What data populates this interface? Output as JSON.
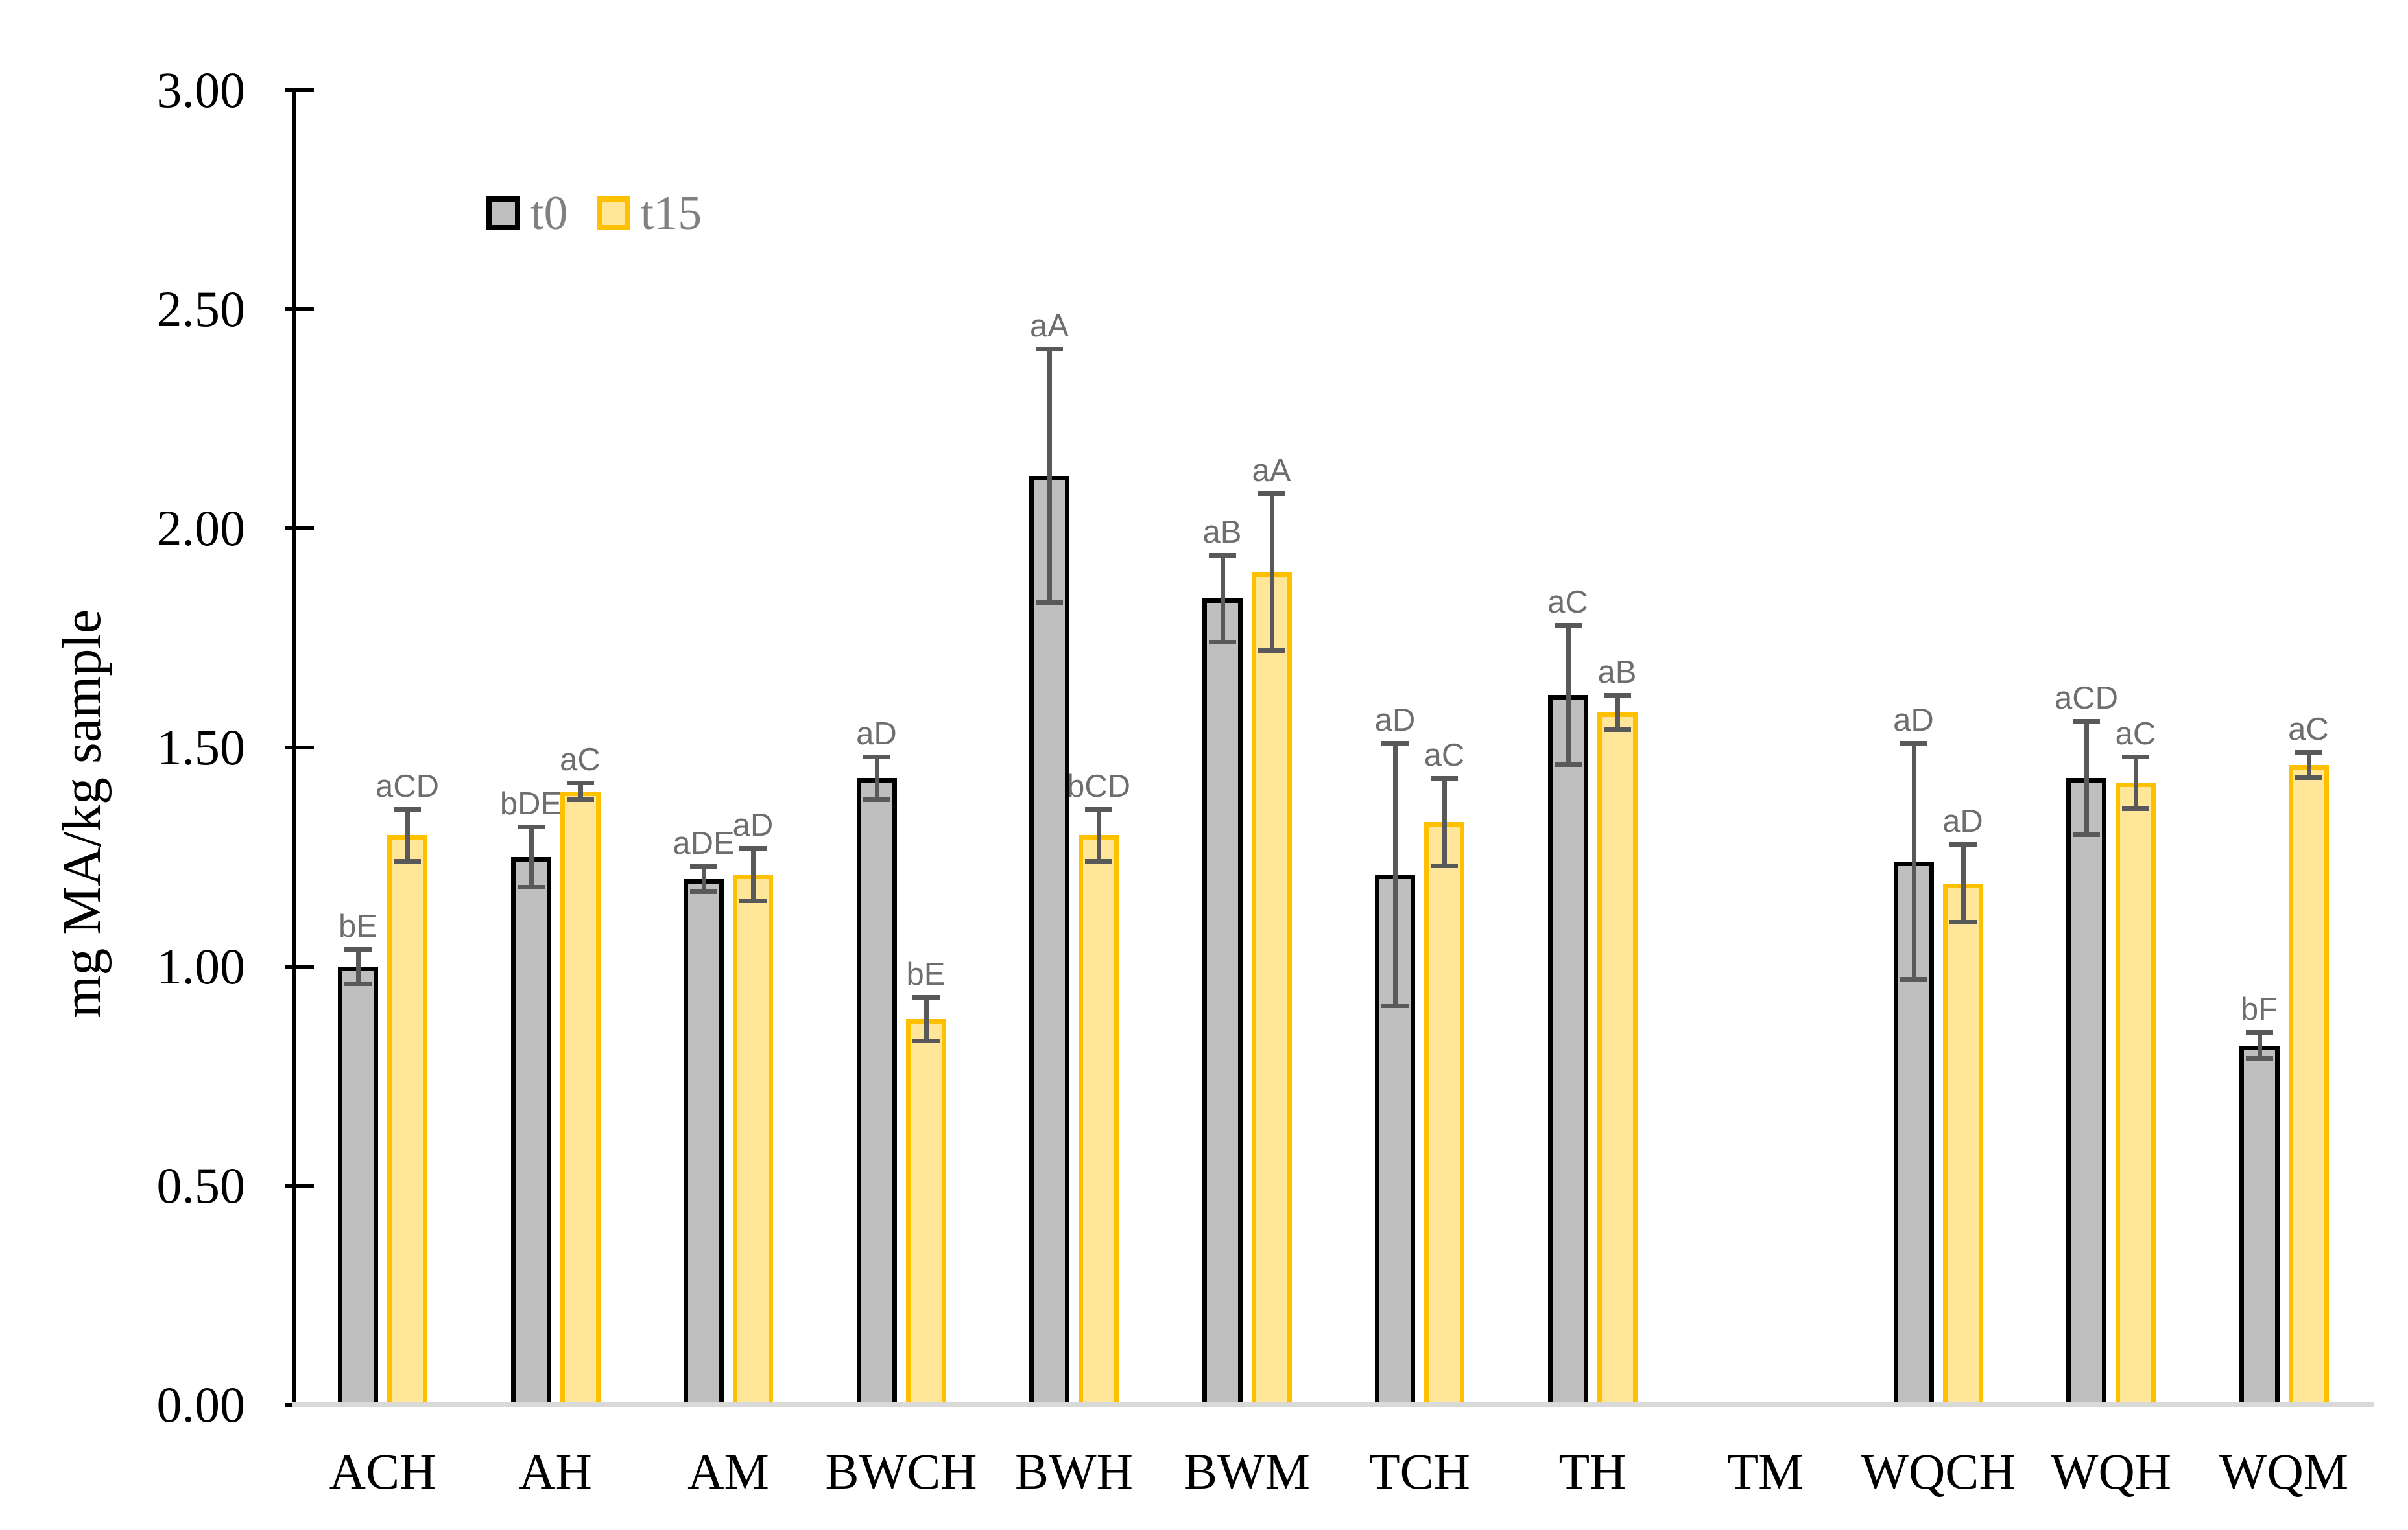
{
  "chart_data": {
    "type": "bar",
    "title": "",
    "xlabel": "",
    "ylabel": "mg MA/kg sample",
    "legend_position": "top-left-inside",
    "grid": false,
    "y_axis": {
      "min": 0,
      "max": 3,
      "step": 0.5,
      "tick_labels": [
        "0.00",
        "0.50",
        "1.00",
        "1.50",
        "2.00",
        "2.50",
        "3.00"
      ]
    },
    "categories": [
      "ACH",
      "AH",
      "AM",
      "BWCH",
      "BWH",
      "BWM",
      "TCH",
      "TH",
      "TM",
      "WQCH",
      "WQH",
      "WQM"
    ],
    "series": [
      {
        "name": "t0",
        "color": "#BFBFBF",
        "border_color": "#000000",
        "values": [
          1.0,
          1.25,
          1.2,
          1.43,
          2.12,
          1.84,
          1.21,
          1.62,
          null,
          1.24,
          1.43,
          0.82
        ],
        "errors": [
          0.04,
          0.07,
          0.03,
          0.05,
          0.29,
          0.1,
          0.3,
          0.16,
          null,
          0.27,
          0.13,
          0.03
        ],
        "sig_labels": [
          "bE",
          "bDE",
          "aDE",
          "aD",
          "aA",
          "aB",
          "aD",
          "aC",
          "",
          "aD",
          "aCD",
          "bF"
        ]
      },
      {
        "name": "t15",
        "color": "#FFE699",
        "border_color": "#FFC000",
        "values": [
          1.3,
          1.4,
          1.21,
          0.88,
          1.3,
          1.9,
          1.33,
          1.58,
          null,
          1.19,
          1.42,
          1.46
        ],
        "errors": [
          0.06,
          0.02,
          0.06,
          0.05,
          0.06,
          0.18,
          0.1,
          0.04,
          null,
          0.09,
          0.06,
          0.03
        ],
        "sig_labels": [
          "aCD",
          "aC",
          "aD",
          "bE",
          "bCD",
          "aA",
          "aC",
          "aB",
          "",
          "aD",
          "aC",
          "aC"
        ]
      }
    ],
    "error_bar_color": "#595959",
    "sig_label_color": "#6e6e6e",
    "axis_color": "#000000",
    "baseline_color": "#D9D9D9"
  }
}
